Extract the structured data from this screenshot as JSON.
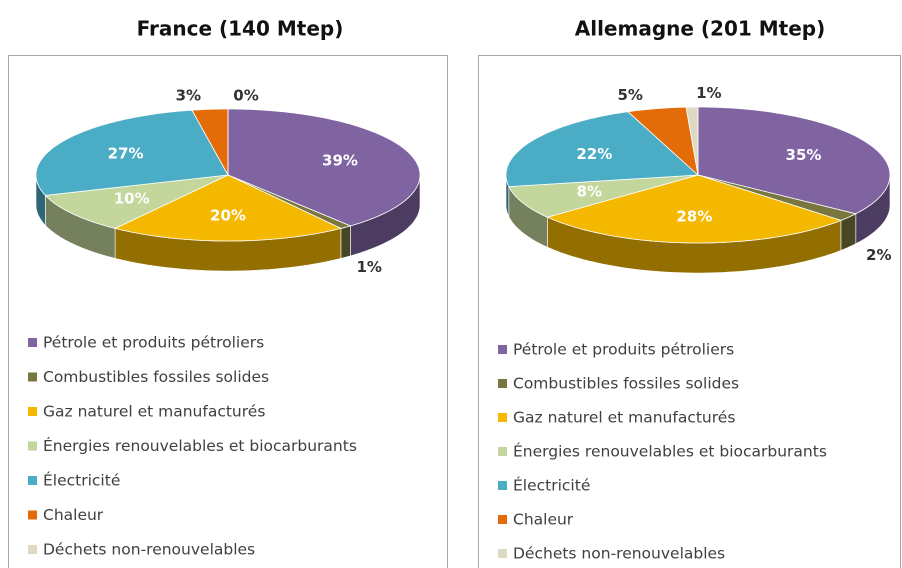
{
  "chart_data": [
    {
      "type": "pie",
      "title": "France (140 Mtep)",
      "categories": [
        "Pétrole et produits pétroliers",
        "Combustibles fossiles solides",
        "Gaz naturel et manufacturés",
        "Énergies renouvelables et biocarburants",
        "Électricité",
        "Chaleur",
        "Déchets non-renouvelables"
      ],
      "values": [
        39,
        1,
        20,
        10,
        27,
        3,
        0
      ],
      "value_labels": [
        "39%",
        "1%",
        "20%",
        "10%",
        "27%",
        "3%",
        "0%"
      ],
      "colors": [
        "#8064a2",
        "#77773f",
        "#f5b800",
        "#c3d69b",
        "#4bacc6",
        "#e36c09",
        "#ddd9c3"
      ]
    },
    {
      "type": "pie",
      "title": "Allemagne (201 Mtep)",
      "categories": [
        "Pétrole et produits pétroliers",
        "Combustibles fossiles solides",
        "Gaz naturel et manufacturés",
        "Énergies renouvelables et biocarburants",
        "Électricité",
        "Chaleur",
        "Déchets non-renouvelables"
      ],
      "values": [
        35,
        2,
        28,
        8,
        22,
        5,
        1
      ],
      "value_labels": [
        "35%",
        "2%",
        "28%",
        "8%",
        "22%",
        "5%",
        "1%"
      ],
      "colors": [
        "#8064a2",
        "#77773f",
        "#f5b800",
        "#c3d69b",
        "#4bacc6",
        "#e36c09",
        "#ddd9c3"
      ]
    }
  ]
}
